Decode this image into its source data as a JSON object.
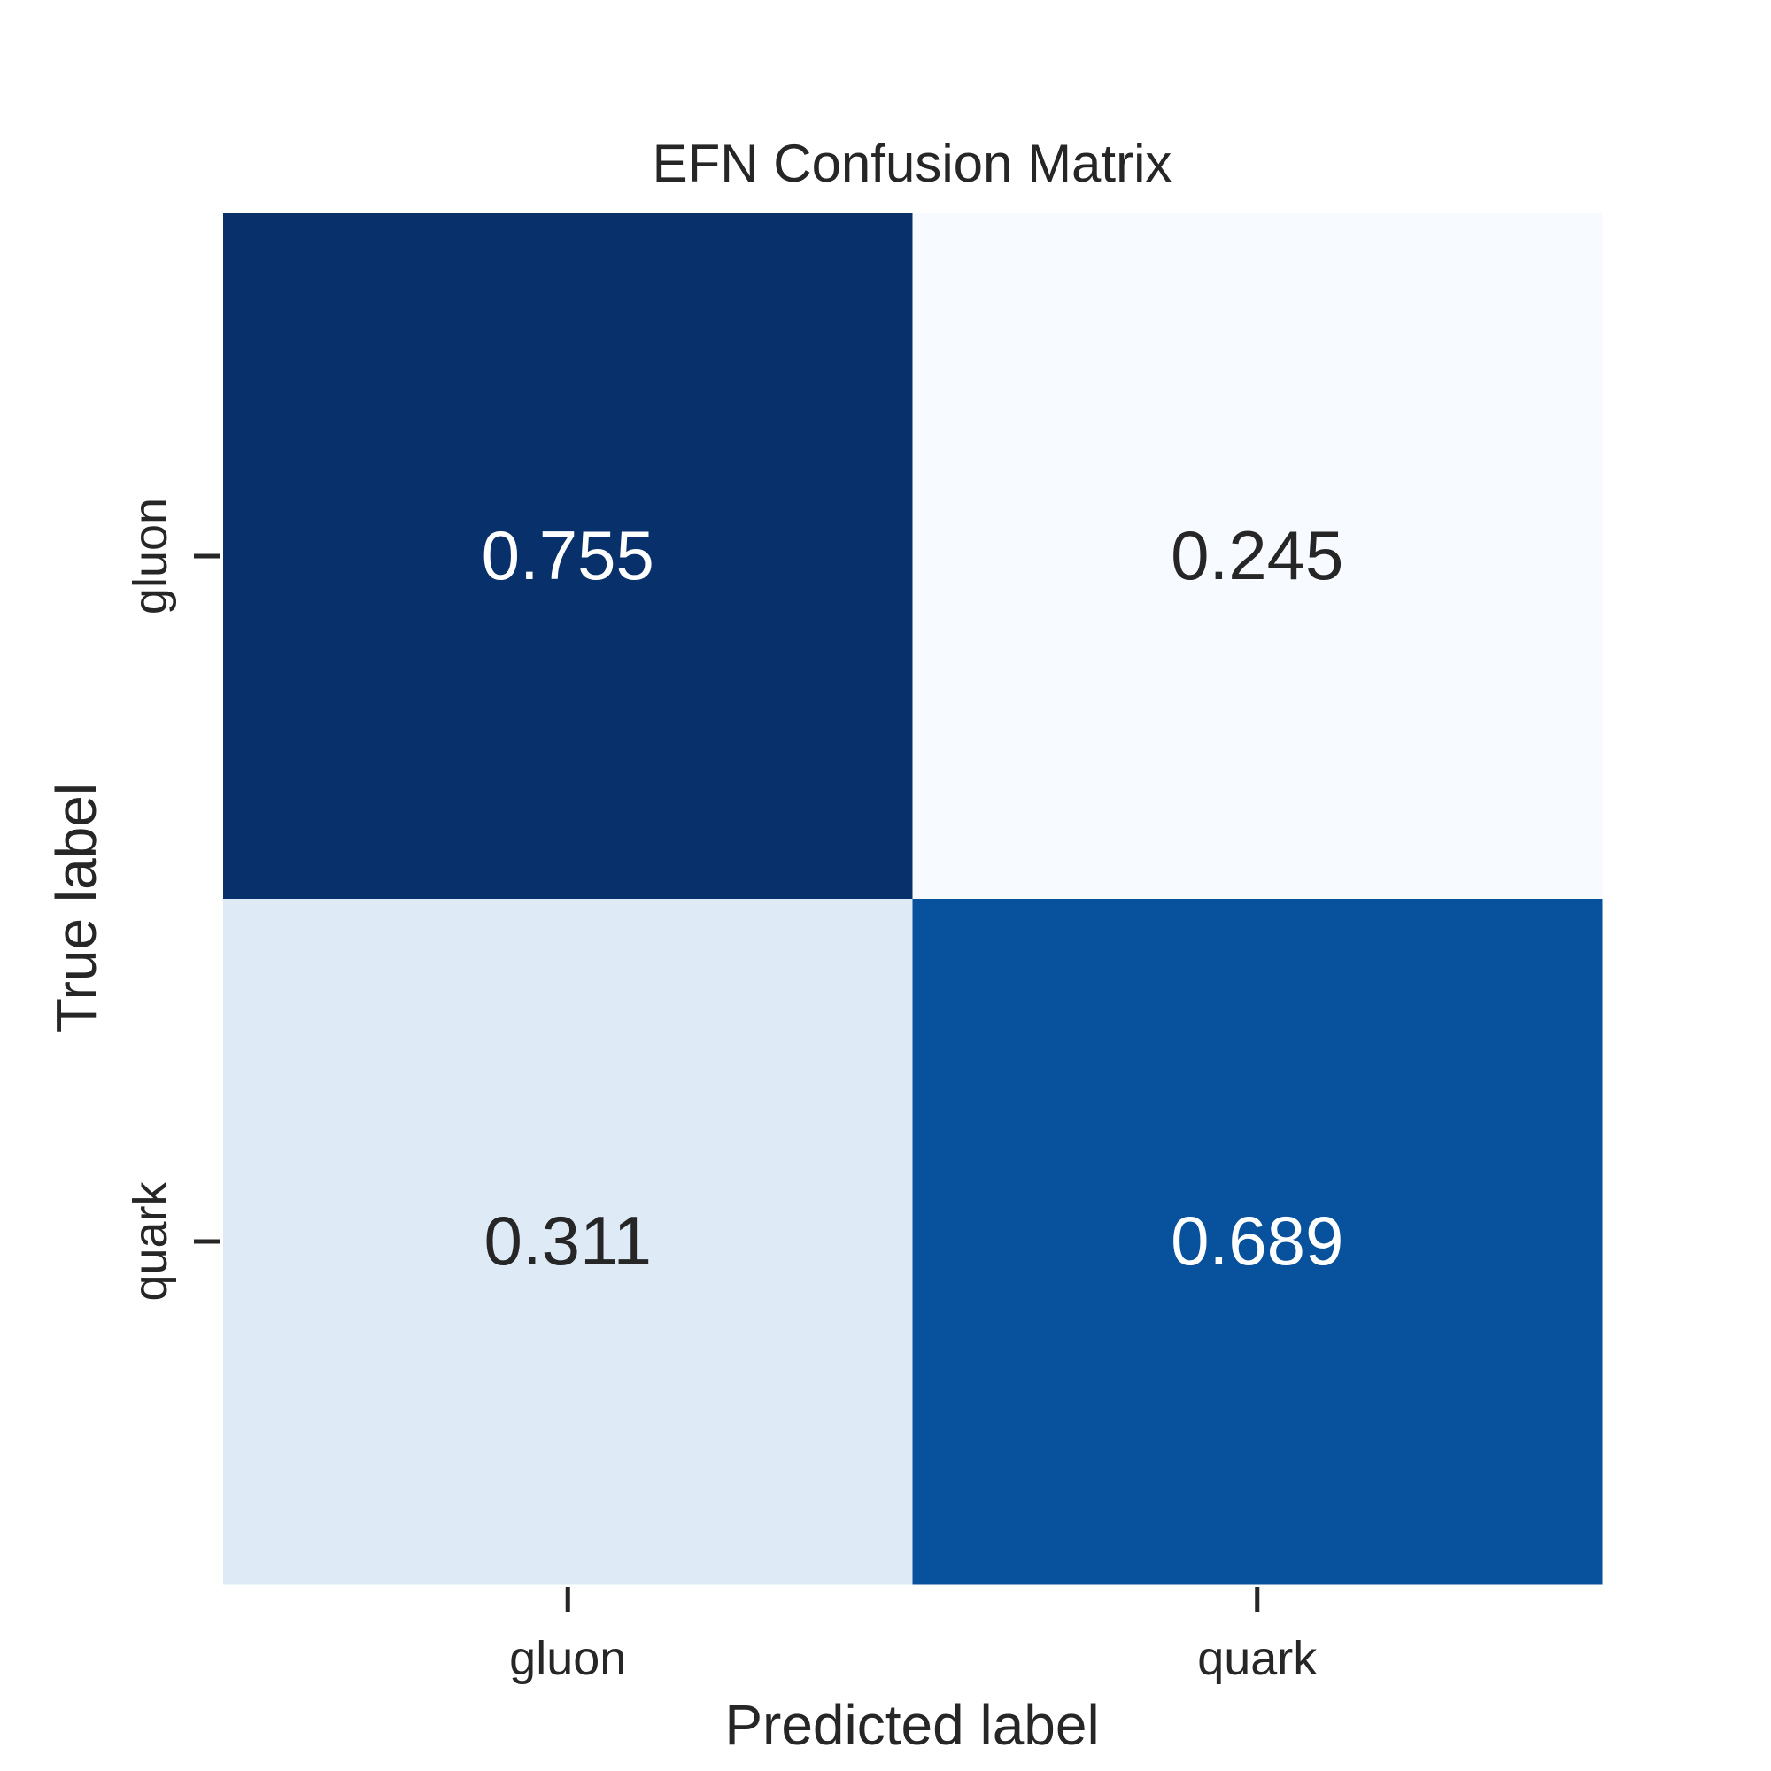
{
  "chart_data": {
    "type": "heatmap",
    "title": "EFN Confusion Matrix",
    "xlabel": "Predicted label",
    "ylabel": "True label",
    "x_categories": [
      "gluon",
      "quark"
    ],
    "y_categories": [
      "gluon",
      "quark"
    ],
    "values": [
      [
        0.755,
        0.245
      ],
      [
        0.311,
        0.689
      ]
    ],
    "value_labels": [
      [
        "0.755",
        "0.245"
      ],
      [
        "0.311",
        "0.689"
      ]
    ],
    "colormap": "Blues",
    "cell_colors": [
      [
        "#08306b",
        "#f7fbff"
      ],
      [
        "#deebf7",
        "#08519c"
      ]
    ],
    "annotation_text_colors": [
      [
        "#ffffff",
        "#262626"
      ],
      [
        "#262626",
        "#ffffff"
      ]
    ],
    "colorbar": false,
    "grid": false
  }
}
